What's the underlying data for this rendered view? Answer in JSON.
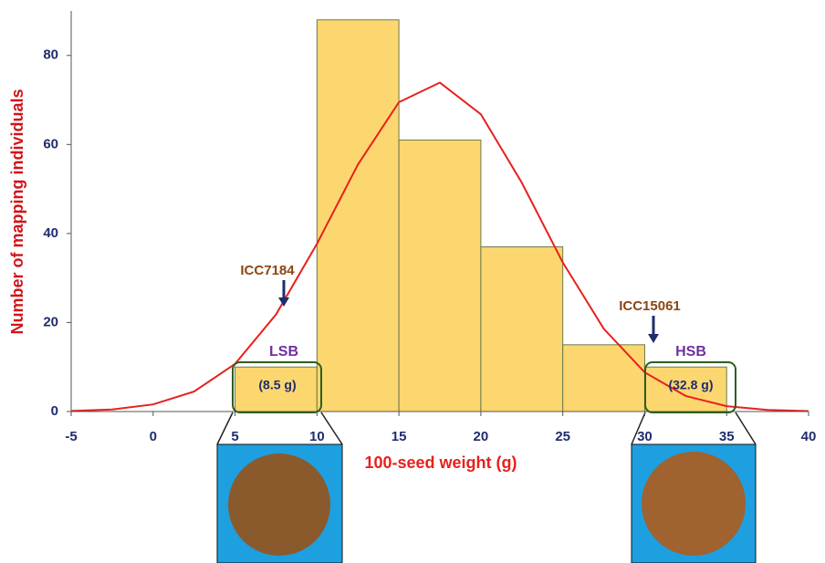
{
  "chart_data": {
    "type": "histogram",
    "x_label": "100-seed weight (g)",
    "y_label": "Number of mapping individuals",
    "bins": [
      5,
      10,
      15,
      20,
      25,
      30,
      35
    ],
    "values": [
      10,
      88,
      61,
      37,
      15,
      10
    ],
    "color": "#fcd770",
    "curve": {
      "color": "#e8201d",
      "x": [
        -5,
        -2.5,
        0,
        2.5,
        5,
        7.5,
        10,
        12.5,
        15,
        17.5,
        20,
        22.5,
        25,
        27.5,
        30,
        32.5,
        35,
        37.5,
        40
      ],
      "values": [
        0.12,
        0.47,
        1.6,
        4.5,
        10.7,
        21.8,
        37.7,
        55.5,
        69.5,
        73.9,
        66.8,
        51.4,
        33.5,
        18.6,
        8.8,
        3.5,
        1.2,
        0.35,
        0.09
      ]
    },
    "xlim": [
      -5,
      40
    ],
    "xticks": [
      -5,
      0,
      5,
      10,
      15,
      20,
      25,
      30,
      35,
      40
    ],
    "ylim": [
      0,
      90
    ],
    "yticks": [
      0,
      20,
      40,
      60,
      80
    ],
    "annotations": {
      "low_parent": "ICC7184",
      "high_parent": "ICC15061",
      "low_bulk": "LSB",
      "low_bulk_weight": "(8.5 g)",
      "high_bulk": "HSB",
      "high_bulk_weight": "(32.8 g)"
    }
  }
}
